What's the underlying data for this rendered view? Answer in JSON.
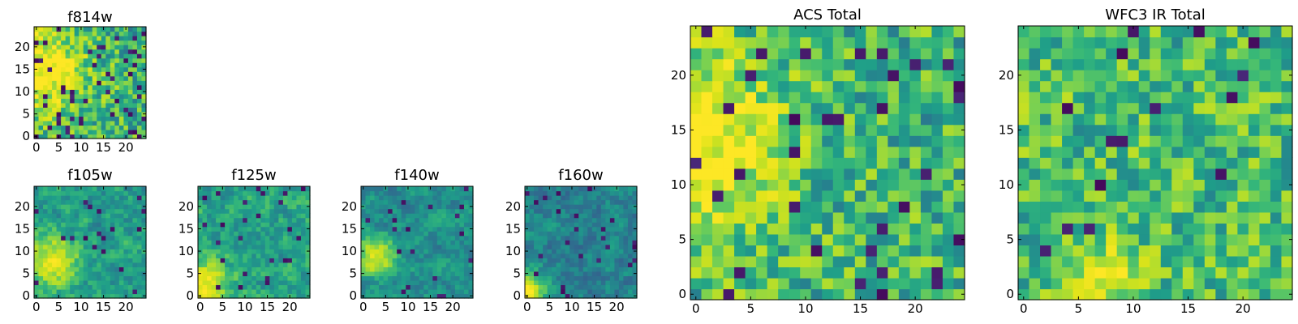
{
  "chart_data": [
    {
      "type": "heatmap",
      "title": "f814w",
      "x_ticks": [
        0,
        5,
        10,
        15,
        20
      ],
      "y_ticks": [
        0,
        5,
        10,
        15,
        20
      ],
      "xlim": [
        -0.5,
        24.5
      ],
      "ylim": [
        -0.5,
        24.5
      ],
      "grid_size": 25,
      "colormap": "viridis",
      "pattern": {
        "seed": 814,
        "hotspot": [
          1,
          15
        ],
        "hot_radius": 7,
        "hot_strength": 0.45,
        "base": 0.58,
        "noise": 0.28,
        "dark_prob": 0.09,
        "smooth": 0.25
      }
    },
    {
      "type": "heatmap",
      "title": "f105w",
      "x_ticks": [
        0,
        5,
        10,
        15,
        20
      ],
      "y_ticks": [
        0,
        5,
        10,
        15,
        20
      ],
      "xlim": [
        -0.5,
        24.5
      ],
      "ylim": [
        -0.5,
        24.5
      ],
      "grid_size": 25,
      "colormap": "viridis",
      "pattern": {
        "seed": 105,
        "hotspot": [
          3,
          8
        ],
        "hot_radius": 4,
        "hot_strength": 0.45,
        "base": 0.5,
        "noise": 0.22,
        "dark_prob": 0.03,
        "smooth": 0.55
      }
    },
    {
      "type": "heatmap",
      "title": "f125w",
      "x_ticks": [
        0,
        5,
        10,
        15,
        20
      ],
      "y_ticks": [
        0,
        5,
        10,
        15,
        20
      ],
      "xlim": [
        -0.5,
        24.5
      ],
      "ylim": [
        -0.5,
        24.5
      ],
      "grid_size": 25,
      "colormap": "viridis",
      "pattern": {
        "seed": 125,
        "hotspot": [
          1,
          2
        ],
        "hot_radius": 4,
        "hot_strength": 0.45,
        "base": 0.52,
        "noise": 0.22,
        "dark_prob": 0.03,
        "smooth": 0.55
      }
    },
    {
      "type": "heatmap",
      "title": "f140w",
      "x_ticks": [
        0,
        5,
        10,
        15,
        20
      ],
      "y_ticks": [
        0,
        5,
        10,
        15,
        20
      ],
      "xlim": [
        -0.5,
        24.5
      ],
      "ylim": [
        -0.5,
        24.5
      ],
      "grid_size": 25,
      "colormap": "viridis",
      "pattern": {
        "seed": 140,
        "hotspot": [
          3,
          9
        ],
        "hot_radius": 3,
        "hot_strength": 0.5,
        "base": 0.45,
        "noise": 0.2,
        "dark_prob": 0.03,
        "smooth": 0.6
      }
    },
    {
      "type": "heatmap",
      "title": "f160w",
      "x_ticks": [
        0,
        5,
        10,
        15,
        20
      ],
      "y_ticks": [
        0,
        5,
        10,
        15,
        20
      ],
      "xlim": [
        -0.5,
        24.5
      ],
      "ylim": [
        -0.5,
        24.5
      ],
      "grid_size": 25,
      "colormap": "viridis",
      "pattern": {
        "seed": 160,
        "hotspot": [
          0,
          1
        ],
        "hot_radius": 3,
        "hot_strength": 0.55,
        "base": 0.4,
        "noise": 0.2,
        "dark_prob": 0.03,
        "smooth": 0.6
      }
    },
    {
      "type": "heatmap",
      "title": "ACS Total",
      "x_ticks": [
        0,
        5,
        10,
        15,
        20
      ],
      "y_ticks": [
        0,
        5,
        10,
        15,
        20
      ],
      "xlim": [
        -0.5,
        24.5
      ],
      "ylim": [
        -0.5,
        24.5
      ],
      "grid_size": 25,
      "colormap": "viridis",
      "pattern": {
        "seed": 2001,
        "hotspot": [
          0,
          14
        ],
        "hot_radius": 6,
        "hot_strength": 0.45,
        "base": 0.58,
        "noise": 0.26,
        "dark_prob": 0.04,
        "smooth": 0.2
      }
    },
    {
      "type": "heatmap",
      "title": "WFC3 IR Total",
      "x_ticks": [
        0,
        5,
        10,
        15,
        20
      ],
      "y_ticks": [
        0,
        5,
        10,
        15,
        20
      ],
      "xlim": [
        -0.5,
        24.5
      ],
      "ylim": [
        -0.5,
        24.5
      ],
      "grid_size": 25,
      "colormap": "viridis",
      "pattern": {
        "seed": 3003,
        "hotspot": [
          8,
          2
        ],
        "hot_radius": 2,
        "hot_strength": 0.35,
        "base": 0.62,
        "noise": 0.24,
        "dark_prob": 0.03,
        "smooth": 0.2
      }
    }
  ]
}
